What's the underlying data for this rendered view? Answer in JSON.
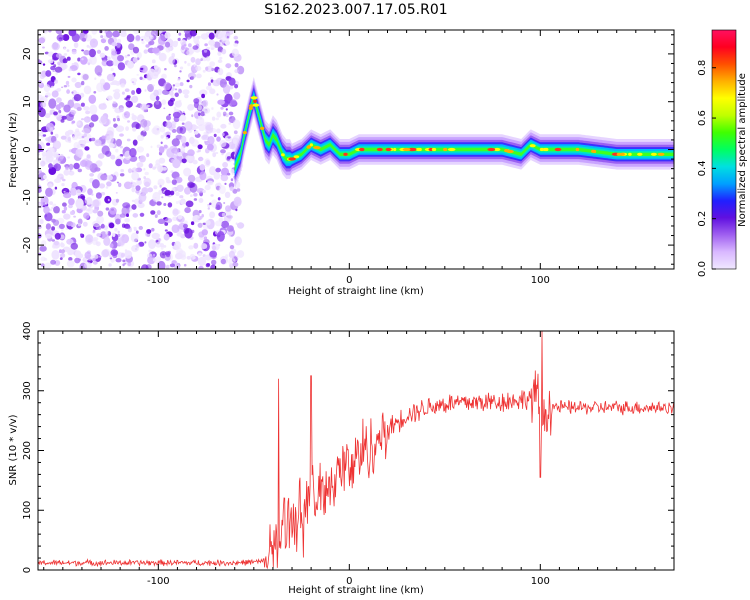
{
  "figure": {
    "title": "S162.2023.007.17.05.R01"
  },
  "chart_data": [
    {
      "type": "heatmap",
      "xlabel": "Height of straight line (km)",
      "ylabel": "Frequency (Hz)",
      "xlim": [
        -163,
        170
      ],
      "ylim": [
        -25,
        25
      ],
      "x_ticks": [
        -100,
        0,
        100
      ],
      "y_ticks": [
        -20,
        -10,
        0,
        10,
        20
      ],
      "noise_region_x": [
        -163,
        -60
      ],
      "signal_trace": {
        "x": [
          -60,
          -57,
          -55,
          -52,
          -50,
          -48,
          -46,
          -44,
          -42,
          -40,
          -38,
          -35,
          -33,
          -30,
          -25,
          -20,
          -15,
          -10,
          -5,
          0,
          5,
          10,
          20,
          40,
          60,
          80,
          90,
          95,
          100,
          120,
          140,
          160,
          170
        ],
        "freq": [
          -4,
          -1,
          3,
          8,
          11,
          8,
          5,
          2,
          1,
          3,
          2,
          -1,
          -2,
          -2,
          -1,
          1,
          0,
          1,
          -1,
          -1,
          0,
          0,
          0,
          0,
          0,
          0,
          -1,
          1,
          0,
          0,
          -1,
          -1,
          -1
        ]
      },
      "colorbar": {
        "label": "Normalized spectral amplitude",
        "range": [
          0,
          0.95
        ],
        "ticks": [
          0.0,
          0.2,
          0.4,
          0.6,
          0.8
        ],
        "colors": [
          "#f0e8ff",
          "#d9b8ff",
          "#a060f0",
          "#6010e0",
          "#2020ff",
          "#00a0ff",
          "#00e0e0",
          "#00ff60",
          "#40ff00",
          "#c0ff00",
          "#ffff00",
          "#ffb000",
          "#ff5000",
          "#ff0020",
          "#ff1060"
        ]
      }
    },
    {
      "type": "line",
      "xlabel": "Height of straight line (km)",
      "ylabel": "SNR (10 * v/v)",
      "xlim": [
        -163,
        170
      ],
      "ylim": [
        0,
        400
      ],
      "x_ticks": [
        -100,
        0,
        100
      ],
      "y_ticks": [
        0,
        100,
        200,
        300,
        400
      ],
      "color": "#ee3333",
      "trend": {
        "x": [
          -163,
          -60,
          -45,
          -40,
          -35,
          -30,
          -20,
          -10,
          0,
          10,
          20,
          30,
          40,
          50,
          60,
          80,
          90,
          98,
          101,
          105,
          110,
          130,
          170
        ],
        "y": [
          12,
          12,
          14,
          25,
          70,
          90,
          110,
          150,
          175,
          205,
          235,
          260,
          272,
          278,
          280,
          282,
          285,
          290,
          250,
          275,
          272,
          272,
          272
        ]
      },
      "spikes": [
        {
          "x": -37,
          "y": 320
        },
        {
          "x": -20,
          "y": 325
        },
        {
          "x": 101,
          "y": 400
        },
        {
          "x": 100,
          "y": 155
        }
      ]
    }
  ]
}
